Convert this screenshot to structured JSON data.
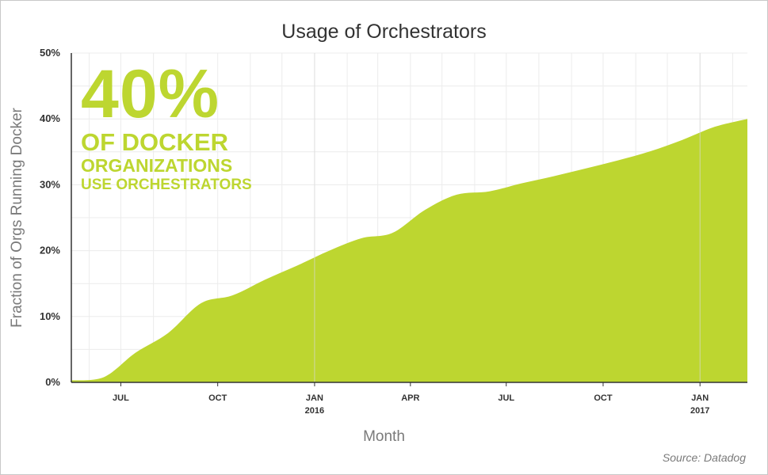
{
  "chart_data": {
    "type": "area",
    "title": "Usage of Orchestrators",
    "xlabel": "Month",
    "ylabel": "Fraction of Orgs Running Docker",
    "ylim": [
      0,
      50
    ],
    "y_ticks": [
      "0%",
      "10%",
      "20%",
      "30%",
      "40%",
      "50%"
    ],
    "x_ticks": [
      {
        "month": "2015-07",
        "label": "JUL",
        "year": ""
      },
      {
        "month": "2015-10",
        "label": "OCT",
        "year": ""
      },
      {
        "month": "2016-01",
        "label": "JAN",
        "year": "2016"
      },
      {
        "month": "2016-04",
        "label": "APR",
        "year": ""
      },
      {
        "month": "2016-07",
        "label": "JUL",
        "year": ""
      },
      {
        "month": "2016-10",
        "label": "OCT",
        "year": ""
      },
      {
        "month": "2017-01",
        "label": "JAN",
        "year": "2017"
      }
    ],
    "x_range": [
      "2015-05-15",
      "2017-02-15"
    ],
    "grid": true,
    "color": "#bdd630",
    "series": [
      {
        "x": [
          "2015-05-15",
          "2015-06-15",
          "2015-07-15",
          "2015-08-15",
          "2015-09-15",
          "2015-10-15",
          "2015-11-15",
          "2015-12-15",
          "2016-01-15",
          "2016-02-15",
          "2016-03-15",
          "2016-04-15",
          "2016-05-15",
          "2016-06-15",
          "2016-07-15",
          "2016-08-15",
          "2016-09-15",
          "2016-10-15",
          "2016-11-15",
          "2016-12-15",
          "2017-01-15",
          "2017-02-15"
        ],
        "values": [
          0.3,
          0.8,
          4.5,
          7.5,
          12.0,
          13.2,
          15.6,
          17.7,
          20.0,
          21.9,
          22.7,
          26.2,
          28.5,
          29.0,
          30.2,
          31.3,
          32.5,
          33.7,
          35.1,
          36.8,
          38.8,
          40.0
        ]
      }
    ]
  },
  "callout": {
    "big": "40%",
    "line1": "OF DOCKER",
    "line2": "ORGANIZATIONS",
    "line3": "USE ORCHESTRATORS"
  },
  "source": "Source: Datadog"
}
